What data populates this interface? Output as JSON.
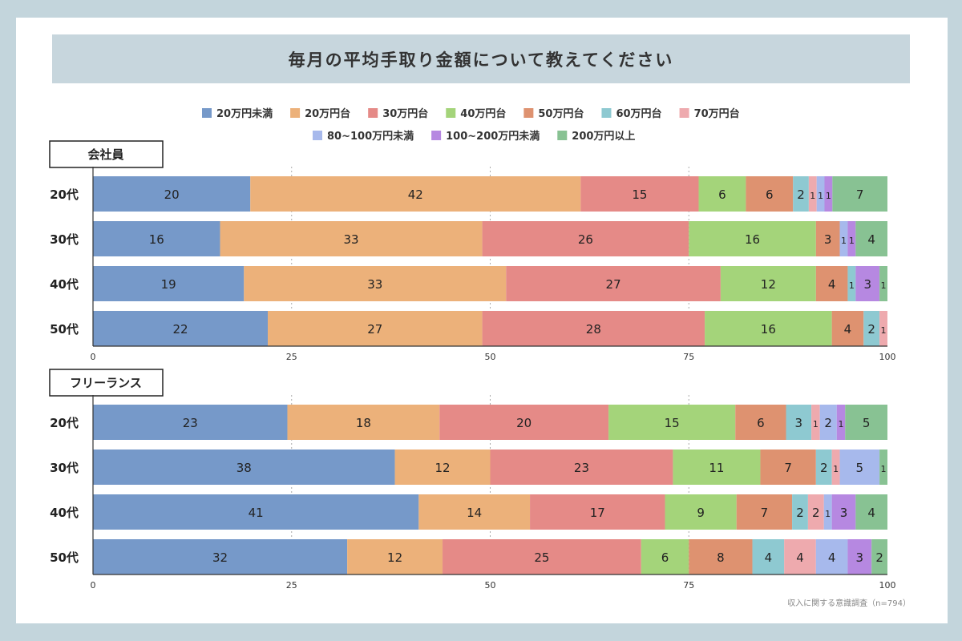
{
  "title": "毎月の平均手取り金額について教えてください",
  "source": "収入に関する意識調査（n=794）",
  "chart_data": {
    "type": "bar",
    "orientation": "horizontal-stacked",
    "legend_position": "top",
    "grid": true,
    "xlim": [
      0,
      100
    ],
    "x_ticks": [
      "0",
      "25",
      "50",
      "75",
      "100"
    ],
    "legend": [
      {
        "name": "20万円未満",
        "color": "#7699c9"
      },
      {
        "name": "20万円台",
        "color": "#ecb17a"
      },
      {
        "name": "30万円台",
        "color": "#e58a87"
      },
      {
        "name": "40万円台",
        "color": "#a4d47a"
      },
      {
        "name": "50万円台",
        "color": "#de9270"
      },
      {
        "name": "60万円台",
        "color": "#8ec9d1"
      },
      {
        "name": "70万円台",
        "color": "#eeaaae"
      },
      {
        "name": "80~100万円未満",
        "color": "#a7b9ec"
      },
      {
        "name": "100~200万円未満",
        "color": "#b688e1"
      },
      {
        "name": "200万円以上",
        "color": "#88c293"
      }
    ],
    "groups": [
      {
        "label": "会社員",
        "categories": [
          "20代",
          "30代",
          "40代",
          "50代"
        ],
        "rows": [
          [
            20,
            42,
            15,
            6,
            6,
            2,
            1,
            1,
            1,
            7
          ],
          [
            16,
            33,
            26,
            16,
            3,
            0,
            0,
            1,
            1,
            4
          ],
          [
            19,
            33,
            27,
            12,
            4,
            1,
            0,
            0,
            3,
            1
          ],
          [
            22,
            27,
            28,
            16,
            4,
            2,
            1,
            0,
            0,
            0
          ]
        ]
      },
      {
        "label": "フリーランス",
        "categories": [
          "20代",
          "30代",
          "40代",
          "50代"
        ],
        "rows": [
          [
            23,
            18,
            20,
            15,
            6,
            3,
            1,
            2,
            1,
            5
          ],
          [
            38,
            12,
            23,
            11,
            7,
            2,
            1,
            5,
            0,
            1
          ],
          [
            41,
            14,
            17,
            9,
            7,
            2,
            2,
            1,
            3,
            4
          ],
          [
            32,
            12,
            25,
            6,
            8,
            4,
            4,
            4,
            3,
            2
          ]
        ]
      }
    ]
  }
}
